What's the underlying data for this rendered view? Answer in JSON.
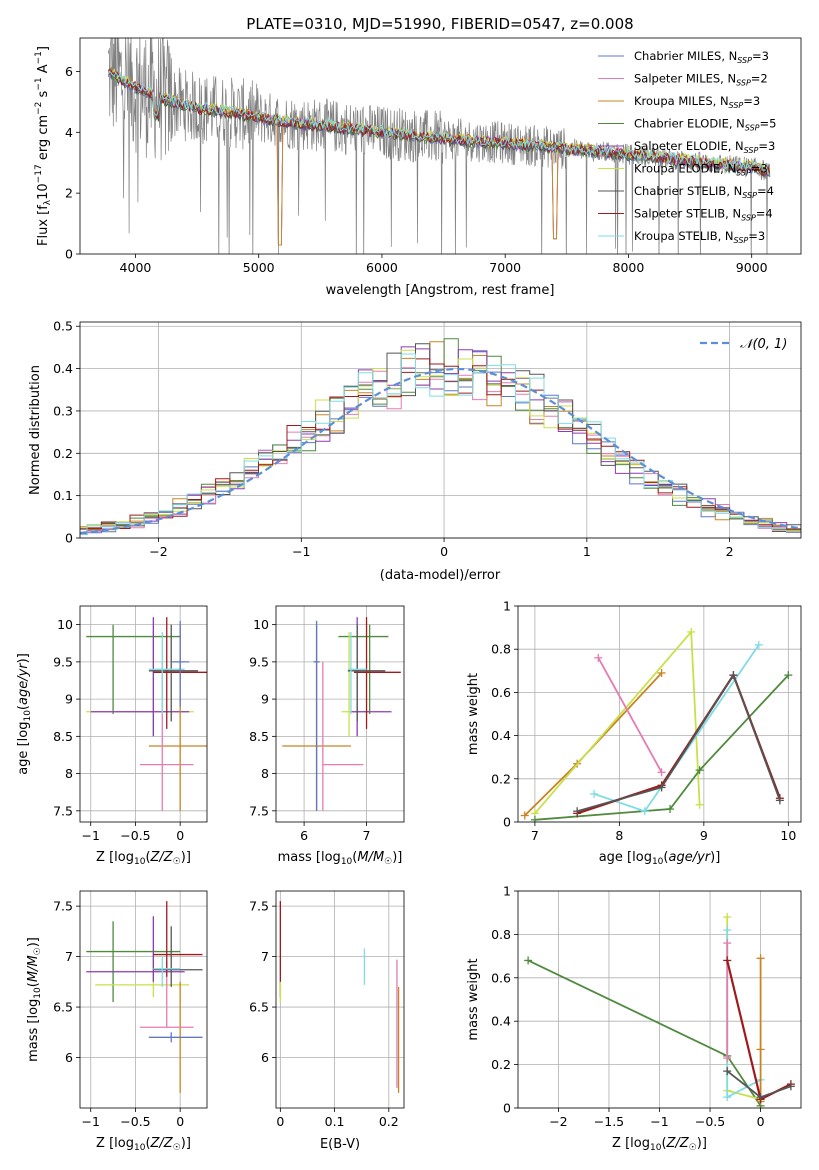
{
  "figure": {
    "title": "PLATE=0310, MJD=51990, FIBERID=0547, z=0.008"
  },
  "colors": {
    "Chabrier MILES": "#5f77c9",
    "Salpeter MILES": "#e67bb3",
    "Kroupa MILES": "#c88524",
    "Chabrier ELODIE": "#4f8a3e",
    "Salpeter ELODIE": "#8e3bb3",
    "Kroupa ELODIE": "#c8e04a",
    "Chabrier STELIB": "#555555",
    "Salpeter STELIB": "#9e1b1b",
    "Kroupa STELIB": "#7fdce3",
    "data": "#808080",
    "orange_fit": "#e0772e",
    "salp_stelib_thick": "#9e2424",
    "gauss": "#5b8fd6"
  },
  "chart_data": [
    {
      "id": "spectrum",
      "type": "line",
      "title": "PLATE=0310, MJD=51990, FIBERID=0547, z=0.008",
      "xlabel": "wavelength [Angstrom, rest frame]",
      "ylabel": "Flux [fλ 10^-17 erg cm^-2 s^-1 A^-1]",
      "xlim": [
        3550,
        9400
      ],
      "ylim": [
        0,
        7.1
      ],
      "xticks": [
        4000,
        5000,
        6000,
        7000,
        8000,
        9000
      ],
      "yticks": [
        0,
        2,
        4,
        6
      ],
      "legend_position": "upper right",
      "legend": [
        "Chabrier MILES, NSSP=3",
        "Salpeter MILES, NSSP=2",
        "Kroupa MILES, NSSP=3",
        "Chabrier ELODIE, NSSP=5",
        "Salpeter ELODIE, NSSP=3",
        "Kroupa ELODIE, NSSP=3",
        "Chabrier STELIB, NSSP=4",
        "Salpeter STELIB, NSSP=4",
        "Kroupa STELIB, NSSP=3"
      ],
      "continuum": {
        "x": [
          3780,
          3900,
          4000,
          4100,
          4300,
          4500,
          4700,
          5000,
          5300,
          5600,
          6000,
          6500,
          7000,
          7400,
          7800,
          8200,
          8600,
          9000,
          9150
        ],
        "y": [
          6.0,
          5.7,
          5.5,
          5.3,
          5.0,
          4.8,
          4.7,
          4.5,
          4.3,
          4.2,
          4.0,
          3.8,
          3.65,
          3.5,
          3.35,
          3.2,
          3.0,
          2.85,
          2.7
        ]
      },
      "grid": false
    },
    {
      "id": "residuals",
      "type": "step",
      "xlabel": "(data-model)/error",
      "ylabel": "Normed distribution",
      "xlim": [
        -2.55,
        2.5
      ],
      "ylim": [
        0,
        0.51
      ],
      "xticks": [
        -2,
        -1,
        0,
        1,
        2
      ],
      "yticks": [
        0.0,
        0.1,
        0.2,
        0.3,
        0.4,
        0.5
      ],
      "grid": true,
      "legend": [
        "𝒩(0, 1)"
      ],
      "legend_position": "upper right",
      "bin_width": 0.1
    },
    {
      "id": "age-vs-Z",
      "type": "errorbar",
      "xlabel": "Z [log10(Z/Z☉)]",
      "ylabel": "age [log10(age/yr)]",
      "xlim": [
        -1.12,
        0.3
      ],
      "ylim": [
        7.35,
        10.25
      ],
      "xticks": [
        -1.0,
        -0.5,
        0.0
      ],
      "yticks": [
        7.5,
        8.0,
        8.5,
        9.0,
        9.5,
        10.0
      ],
      "grid": true,
      "points": [
        {
          "s": "Chabrier ELODIE",
          "x": -0.75,
          "y": 9.84,
          "xe": [
            -1.05,
            -0.0
          ],
          "ye": [
            8.8,
            10.0
          ]
        },
        {
          "s": "Kroupa ELODIE",
          "x": -0.3,
          "y": 8.83,
          "xe": [
            -1.05,
            0.15
          ],
          "ye": [
            8.5,
            9.9
          ]
        },
        {
          "s": "Salpeter ELODIE",
          "x": -0.3,
          "y": 8.83,
          "xe": [
            -1.0,
            0.1
          ],
          "ye": [
            8.5,
            10.1
          ]
        },
        {
          "s": "Kroupa MILES",
          "x": 0.0,
          "y": 8.37,
          "xe": [
            -0.35,
            0.3
          ],
          "ye": [
            7.5,
            10.0
          ]
        },
        {
          "s": "Salpeter MILES",
          "x": -0.2,
          "y": 8.12,
          "xe": [
            -0.45,
            0.15
          ],
          "ye": [
            7.5,
            9.5
          ]
        },
        {
          "s": "Salpeter STELIB",
          "x": -0.15,
          "y": 9.36,
          "xe": [
            -0.3,
            0.3
          ],
          "ye": [
            8.6,
            10.1
          ]
        },
        {
          "s": "Chabrier STELIB",
          "x": -0.1,
          "y": 9.38,
          "xe": [
            -0.35,
            0.2
          ],
          "ye": [
            8.7,
            10.0
          ]
        },
        {
          "s": "Kroupa STELIB",
          "x": -0.2,
          "y": 9.4,
          "xe": [
            -0.35,
            0.05
          ],
          "ye": [
            8.8,
            9.9
          ]
        },
        {
          "s": "Chabrier MILES",
          "x": 0.0,
          "y": 9.5,
          "xe": [
            -0.1,
            0.1
          ],
          "ye": [
            8.9,
            10.05
          ]
        }
      ]
    },
    {
      "id": "age-vs-mass",
      "type": "errorbar",
      "xlabel": "mass [log10(M/M☉)]",
      "ylabel": "",
      "xlim": [
        5.55,
        7.6
      ],
      "ylim": [
        7.35,
        10.25
      ],
      "xticks": [
        6,
        7
      ],
      "yticks": [
        7.5,
        8.0,
        8.5,
        9.0,
        9.5,
        10.0
      ],
      "grid": true,
      "points": [
        {
          "s": "Chabrier ELODIE",
          "x": 7.05,
          "y": 9.84,
          "xe": [
            6.55,
            7.35
          ],
          "ye": [
            8.8,
            10.0
          ]
        },
        {
          "s": "Kroupa ELODIE",
          "x": 6.72,
          "y": 8.83,
          "xe": [
            6.6,
            7.05
          ],
          "ye": [
            8.5,
            9.9
          ]
        },
        {
          "s": "Salpeter ELODIE",
          "x": 6.85,
          "y": 8.83,
          "xe": [
            6.75,
            7.4
          ],
          "ye": [
            8.5,
            10.1
          ]
        },
        {
          "s": "Kroupa MILES",
          "x": 6.2,
          "y": 8.37,
          "xe": [
            5.65,
            6.75
          ],
          "ye": [
            7.5,
            10.0
          ]
        },
        {
          "s": "Salpeter MILES",
          "x": 6.3,
          "y": 8.12,
          "xe": [
            6.3,
            6.95
          ],
          "ye": [
            7.5,
            9.5
          ]
        },
        {
          "s": "Salpeter STELIB",
          "x": 7.0,
          "y": 9.36,
          "xe": [
            6.8,
            7.55
          ],
          "ye": [
            8.6,
            10.1
          ]
        },
        {
          "s": "Chabrier STELIB",
          "x": 6.85,
          "y": 9.38,
          "xe": [
            6.7,
            7.3
          ],
          "ye": [
            8.7,
            10.0
          ]
        },
        {
          "s": "Kroupa STELIB",
          "x": 6.75,
          "y": 9.4,
          "xe": [
            6.7,
            7.0
          ],
          "ye": [
            8.8,
            9.9
          ]
        },
        {
          "s": "Chabrier MILES",
          "x": 6.2,
          "y": 9.5,
          "xe": [
            6.15,
            6.25
          ],
          "ye": [
            7.5,
            10.05
          ]
        }
      ]
    },
    {
      "id": "weight-vs-age",
      "type": "line",
      "xlabel": "age [log10(age/yr)]",
      "ylabel": "mass weight",
      "xlim": [
        6.8,
        10.15
      ],
      "ylim": [
        0,
        1.0
      ],
      "xticks": [
        7,
        8,
        9,
        10
      ],
      "yticks": [
        0.0,
        0.2,
        0.4,
        0.6,
        0.8,
        1.0
      ],
      "grid": true,
      "series": [
        {
          "s": "Kroupa MILES",
          "x": [
            6.88,
            7.5,
            8.5
          ],
          "y": [
            0.03,
            0.27,
            0.69
          ]
        },
        {
          "s": "Kroupa ELODIE",
          "x": [
            7.0,
            8.85,
            8.95
          ],
          "y": [
            0.04,
            0.88,
            0.08
          ]
        },
        {
          "s": "Salpeter MILES",
          "x": [
            7.75,
            8.5
          ],
          "y": [
            0.76,
            0.23
          ]
        },
        {
          "s": "Chabrier ELODIE",
          "x": [
            7.0,
            8.6,
            8.95,
            10.0
          ],
          "y": [
            0.01,
            0.06,
            0.24,
            0.68
          ]
        },
        {
          "s": "Kroupa STELIB",
          "x": [
            7.7,
            8.3,
            9.65
          ],
          "y": [
            0.13,
            0.05,
            0.82
          ]
        },
        {
          "s": "Salpeter STELIB",
          "x": [
            7.5,
            8.5,
            9.35,
            9.9
          ],
          "y": [
            0.04,
            0.17,
            0.68,
            0.11
          ]
        },
        {
          "s": "Chabrier STELIB",
          "x": [
            7.5,
            8.5,
            9.35,
            9.9
          ],
          "y": [
            0.05,
            0.16,
            0.68,
            0.1
          ]
        }
      ]
    },
    {
      "id": "mass-vs-Z",
      "type": "errorbar",
      "xlabel": "Z [log10(Z/Z☉)]",
      "ylabel": "mass [log10(M/M☉)]",
      "xlim": [
        -1.12,
        0.3
      ],
      "ylim": [
        5.5,
        7.65
      ],
      "xticks": [
        -1.0,
        -0.5,
        0.0
      ],
      "yticks": [
        6.0,
        6.5,
        7.0,
        7.5
      ],
      "grid": true,
      "points": [
        {
          "s": "Chabrier ELODIE",
          "x": -0.75,
          "y": 7.05,
          "xe": [
            -1.05,
            0.0
          ],
          "ye": [
            6.55,
            7.35
          ]
        },
        {
          "s": "Kroupa ELODIE",
          "x": -0.3,
          "y": 6.72,
          "xe": [
            -0.95,
            0.1
          ],
          "ye": [
            6.6,
            7.05
          ]
        },
        {
          "s": "Salpeter ELODIE",
          "x": -0.3,
          "y": 6.85,
          "xe": [
            -1.05,
            0.05
          ],
          "ye": [
            6.75,
            7.4
          ]
        },
        {
          "s": "Kroupa MILES",
          "x": 0.0,
          "y": 6.2,
          "xe": [
            -0.35,
            0.25
          ],
          "ye": [
            5.65,
            6.75
          ]
        },
        {
          "s": "Salpeter MILES",
          "x": -0.15,
          "y": 6.3,
          "xe": [
            -0.45,
            0.15
          ],
          "ye": [
            6.3,
            6.95
          ]
        },
        {
          "s": "Salpeter STELIB",
          "x": -0.15,
          "y": 7.02,
          "xe": [
            -0.3,
            0.25
          ],
          "ye": [
            6.8,
            7.55
          ]
        },
        {
          "s": "Chabrier STELIB",
          "x": -0.1,
          "y": 6.87,
          "xe": [
            -0.3,
            0.25
          ],
          "ye": [
            6.7,
            7.3
          ]
        },
        {
          "s": "Kroupa STELIB",
          "x": -0.2,
          "y": 6.88,
          "xe": [
            -0.3,
            0.0
          ],
          "ye": [
            6.7,
            7.0
          ]
        },
        {
          "s": "Chabrier MILES",
          "x": -0.1,
          "y": 6.2,
          "xe": [
            -0.35,
            0.25
          ],
          "ye": [
            6.15,
            6.25
          ]
        }
      ]
    },
    {
      "id": "mass-vs-ebv",
      "type": "errorbar",
      "xlabel": "E(B-V)",
      "ylabel": "",
      "xlim": [
        -0.008,
        0.228
      ],
      "ylim": [
        5.5,
        7.65
      ],
      "xticks": [
        0.0,
        0.1,
        0.2
      ],
      "yticks": [
        6.0,
        6.5,
        7.0,
        7.5
      ],
      "grid": true,
      "points": [
        {
          "s": "Salpeter STELIB",
          "x": 0.0,
          "y": 7.0,
          "xe": [
            0.0,
            0.0
          ],
          "ye": [
            6.6,
            7.55
          ]
        },
        {
          "s": "Kroupa ELODIE",
          "x": 0.0,
          "y": 6.65,
          "xe": [
            0.0,
            0.0
          ],
          "ye": [
            6.55,
            6.75
          ]
        },
        {
          "s": "Kroupa STELIB",
          "x": 0.155,
          "y": 6.9,
          "xe": [
            0.155,
            0.155
          ],
          "ye": [
            6.72,
            7.08
          ]
        },
        {
          "s": "Salpeter MILES",
          "x": 0.215,
          "y": 6.3,
          "xe": [
            0.215,
            0.215
          ],
          "ye": [
            5.7,
            6.97
          ]
        },
        {
          "s": "Kroupa MILES",
          "x": 0.218,
          "y": 6.2,
          "xe": [
            0.218,
            0.218
          ],
          "ye": [
            5.65,
            6.7
          ]
        }
      ]
    },
    {
      "id": "weight-vs-Z",
      "type": "line",
      "xlabel": "Z [log10(Z/Z☉)]",
      "ylabel": "mass weight",
      "xlim": [
        -2.4,
        0.4
      ],
      "ylim": [
        0,
        1.0
      ],
      "xticks": [
        -2.0,
        -1.5,
        -1.0,
        -0.5,
        0.0
      ],
      "yticks": [
        0.0,
        0.2,
        0.4,
        0.6,
        0.8,
        1.0
      ],
      "grid": true,
      "series": [
        {
          "s": "Chabrier ELODIE",
          "x": [
            -2.3,
            -0.33,
            0.0
          ],
          "y": [
            0.68,
            0.24,
            0.01
          ]
        },
        {
          "s": "Kroupa ELODIE",
          "x": [
            -0.33,
            -0.33,
            0.0
          ],
          "y": [
            0.88,
            0.08,
            0.04
          ]
        },
        {
          "s": "Kroupa STELIB",
          "x": [
            -0.33,
            -0.33,
            0.0
          ],
          "y": [
            0.82,
            0.05,
            0.13
          ]
        },
        {
          "s": "Salpeter MILES",
          "x": [
            -0.33,
            -0.33
          ],
          "y": [
            0.76,
            0.23
          ]
        },
        {
          "s": "Kroupa MILES",
          "x": [
            0.0,
            0.0,
            0.0
          ],
          "y": [
            0.69,
            0.27,
            0.03
          ]
        },
        {
          "s": "Salpeter STELIB",
          "x": [
            -0.33,
            0.0,
            0.3
          ],
          "y": [
            0.68,
            0.04,
            0.11
          ]
        },
        {
          "s": "Chabrier STELIB",
          "x": [
            -0.33,
            0.0,
            0.3
          ],
          "y": [
            0.17,
            0.05,
            0.1
          ]
        }
      ]
    }
  ]
}
